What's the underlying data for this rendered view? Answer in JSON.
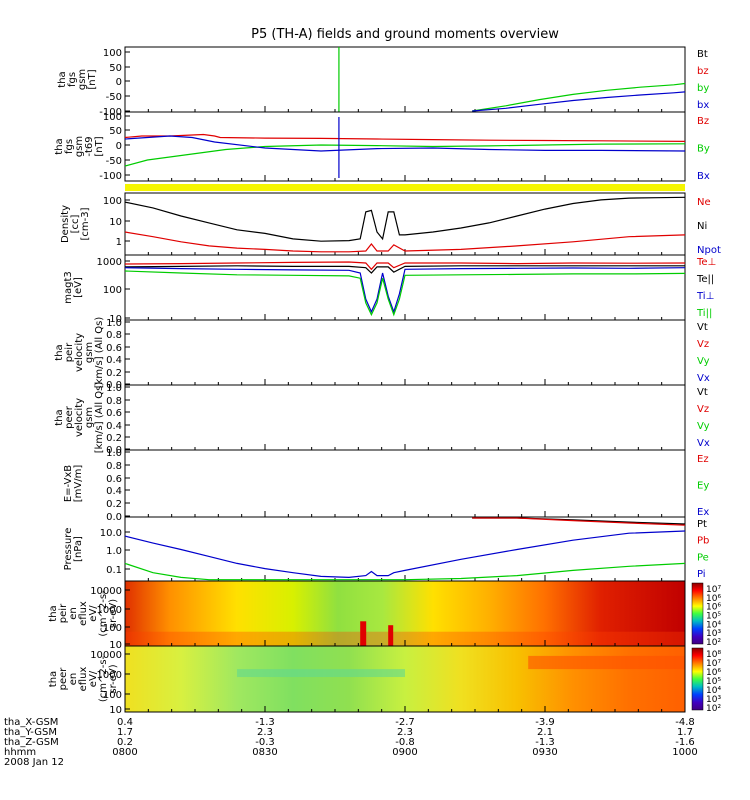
{
  "title": "P5 (TH-A) fields and ground moments overview",
  "colors": {
    "black": "#000000",
    "red": "#e00000",
    "green": "#00cc00",
    "blue": "#0000cc",
    "yellow": "#f5f500"
  },
  "chart_data": [
    {
      "type": "line",
      "ylabel": [
        "tha",
        "fgs",
        "gsm",
        "[nT]"
      ],
      "yticks": [
        "100",
        "50",
        "0",
        "-50",
        "-100"
      ],
      "ylim": [
        -100,
        110
      ],
      "legend": [
        "Bt",
        "bz",
        "by",
        "bx"
      ],
      "series": [
        {
          "name": "by",
          "color": "green",
          "x": [
            0.62,
            0.68,
            0.74,
            0.8,
            0.86,
            0.92,
            0.98,
            1.0
          ],
          "y": [
            -100,
            -80,
            -60,
            -43,
            -30,
            -20,
            -12,
            -8
          ]
        },
        {
          "name": "bx",
          "color": "blue",
          "x": [
            0.62,
            0.68,
            0.74,
            0.8,
            0.86,
            0.92,
            0.98,
            1.0
          ],
          "y": [
            -100,
            -88,
            -75,
            -63,
            -53,
            -45,
            -38,
            -35
          ]
        }
      ],
      "spike": {
        "color": "green",
        "x": 0.382
      }
    },
    {
      "type": "line",
      "ylabel": [
        "tha",
        "fgs",
        "gsm",
        "-t69",
        "[nT]"
      ],
      "yticks": [
        "100",
        "50",
        "0",
        "-50",
        "-100"
      ],
      "ylim": [
        -120,
        110
      ],
      "legend": [
        "Bz",
        "By",
        "Bx"
      ],
      "series": [
        {
          "name": "Bz",
          "color": "red",
          "x": [
            0,
            0.03,
            0.08,
            0.14,
            0.16,
            0.17,
            0.25,
            0.35,
            0.45,
            0.55,
            0.65,
            0.75,
            0.85,
            1.0
          ],
          "y": [
            25,
            30,
            30,
            35,
            30,
            25,
            23,
            22,
            20,
            18,
            16,
            15,
            14,
            12
          ]
        },
        {
          "name": "By",
          "color": "green",
          "x": [
            0,
            0.04,
            0.08,
            0.14,
            0.18,
            0.25,
            0.35,
            0.45,
            0.55,
            0.65,
            0.75,
            0.85,
            1.0
          ],
          "y": [
            -70,
            -50,
            -40,
            -25,
            -15,
            -5,
            0,
            -2,
            -5,
            -3,
            0,
            3,
            4
          ]
        },
        {
          "name": "Bx",
          "color": "blue",
          "x": [
            0,
            0.04,
            0.08,
            0.12,
            0.16,
            0.25,
            0.35,
            0.45,
            0.55,
            0.65,
            0.75,
            0.85,
            1.0
          ],
          "y": [
            20,
            25,
            30,
            25,
            10,
            -10,
            -20,
            -12,
            -10,
            -15,
            -18,
            -18,
            -20
          ]
        }
      ],
      "spike": {
        "color": "blue",
        "x": 0.382
      }
    },
    {
      "type": "line",
      "ylabel": [
        "Density",
        "[cc]",
        "[cm-3]"
      ],
      "yticks": [
        "100",
        "10",
        "1"
      ],
      "ylim": [
        0.4,
        200
      ],
      "scale": "log",
      "legend": [
        "Ne",
        "Ni",
        "Npot"
      ],
      "series": [
        {
          "name": "Ne",
          "color": "black",
          "x": [
            0,
            0.05,
            0.1,
            0.15,
            0.2,
            0.25,
            0.3,
            0.35,
            0.4,
            0.42,
            0.43,
            0.44,
            0.45,
            0.46,
            0.47,
            0.48,
            0.49,
            0.5,
            0.55,
            0.6,
            0.65,
            0.7,
            0.75,
            0.8,
            0.85,
            0.9,
            0.95,
            1.0
          ],
          "y": [
            80,
            45,
            20,
            10,
            5,
            3.5,
            2,
            1.6,
            1.7,
            2,
            30,
            35,
            4,
            2,
            30,
            30,
            3,
            3,
            4,
            6,
            10,
            20,
            40,
            70,
            100,
            120,
            125,
            130
          ]
        },
        {
          "name": "Ni",
          "color": "red",
          "x": [
            0,
            0.05,
            0.1,
            0.15,
            0.2,
            0.25,
            0.3,
            0.35,
            0.4,
            0.43,
            0.44,
            0.45,
            0.47,
            0.48,
            0.5,
            0.6,
            0.7,
            0.8,
            0.9,
            1.0
          ],
          "y": [
            4,
            2.5,
            1.5,
            1,
            0.8,
            0.7,
            0.6,
            0.55,
            0.55,
            0.6,
            1.2,
            0.6,
            0.6,
            1.1,
            0.6,
            0.7,
            1,
            1.5,
            2.5,
            3
          ]
        }
      ]
    },
    {
      "type": "line",
      "ylabel": [
        "magt3",
        "[eV]"
      ],
      "yticks": [
        "1000",
        "100",
        "10"
      ],
      "ylim": [
        8,
        1200
      ],
      "scale": "log",
      "legend": [
        "Te⊥",
        "Te||",
        "Ti⊥",
        "Ti||"
      ],
      "series": [
        {
          "name": "Te⊥",
          "color": "red",
          "x": [
            0,
            0.1,
            0.2,
            0.3,
            0.4,
            0.43,
            0.44,
            0.45,
            0.47,
            0.48,
            0.5,
            0.6,
            0.7,
            0.8,
            0.9,
            1.0
          ],
          "y": [
            600,
            620,
            650,
            680,
            700,
            650,
            400,
            650,
            650,
            450,
            650,
            650,
            620,
            650,
            640,
            650
          ]
        },
        {
          "name": "Te||",
          "color": "black",
          "x": [
            0,
            0.1,
            0.2,
            0.3,
            0.4,
            0.43,
            0.44,
            0.45,
            0.47,
            0.48,
            0.5,
            0.6,
            0.7,
            0.8,
            0.9,
            1.0
          ],
          "y": [
            480,
            500,
            520,
            500,
            500,
            450,
            300,
            480,
            480,
            320,
            500,
            520,
            520,
            520,
            520,
            520
          ]
        },
        {
          "name": "Ti⊥",
          "color": "blue",
          "x": [
            0,
            0.1,
            0.2,
            0.3,
            0.4,
            0.42,
            0.43,
            0.44,
            0.45,
            0.46,
            0.47,
            0.48,
            0.49,
            0.5,
            0.6,
            0.7,
            0.8,
            0.9,
            1.0
          ],
          "y": [
            450,
            420,
            400,
            380,
            370,
            300,
            40,
            15,
            40,
            300,
            50,
            15,
            60,
            400,
            420,
            430,
            440,
            430,
            450
          ]
        },
        {
          "name": "Ti||",
          "color": "green",
          "x": [
            0,
            0.1,
            0.2,
            0.3,
            0.4,
            0.42,
            0.43,
            0.44,
            0.45,
            0.46,
            0.47,
            0.48,
            0.49,
            0.5,
            0.6,
            0.7,
            0.8,
            0.9,
            1.0
          ],
          "y": [
            350,
            300,
            260,
            250,
            240,
            200,
            30,
            12,
            30,
            200,
            40,
            12,
            40,
            250,
            260,
            270,
            280,
            280,
            290
          ]
        }
      ]
    },
    {
      "type": "line",
      "ylabel": [
        "tha",
        "peir",
        "velocity",
        "gsm",
        "[km/s] (All Qs)"
      ],
      "yticks": [
        "1.0",
        "0.8",
        "0.6",
        "0.4",
        "0.2",
        "0.0"
      ],
      "ylim": [
        0,
        1
      ],
      "legend": [
        "Vt",
        "Vz",
        "Vy",
        "Vx"
      ],
      "series": []
    },
    {
      "type": "line",
      "ylabel": [
        "tha",
        "peer",
        "velocity",
        "gsm",
        "[km/s] (All Qs)"
      ],
      "yticks": [
        "1.0",
        "0.8",
        "0.6",
        "0.4",
        "0.2",
        "0.0"
      ],
      "ylim": [
        0,
        1
      ],
      "legend": [
        "Vt",
        "Vz",
        "Vy",
        "Vx"
      ],
      "series": []
    },
    {
      "type": "line",
      "ylabel": [
        "E=-VxB",
        "[mV/m]"
      ],
      "yticks": [
        "1.0",
        "0.8",
        "0.6",
        "0.4",
        "0.2",
        "0.0"
      ],
      "ylim": [
        0,
        1
      ],
      "legend": [
        "Ez",
        "Ey",
        "Ex"
      ],
      "series": []
    },
    {
      "type": "line",
      "ylabel": [
        "Pressure",
        "[nPa]"
      ],
      "yticks": [
        "10.0",
        "1.0",
        "0.1"
      ],
      "ylim": [
        0.035,
        20
      ],
      "scale": "log",
      "legend": [
        "Pt",
        "Pb",
        "Pe",
        "Pi"
      ],
      "series": [
        {
          "name": "Pt",
          "color": "black",
          "x": [
            0.62,
            0.7,
            0.8,
            0.9,
            1.0
          ],
          "y": [
            25,
            20,
            15,
            12,
            10
          ]
        },
        {
          "name": "Pb",
          "color": "red",
          "x": [
            0.62,
            0.7,
            0.8,
            0.9,
            1.0
          ],
          "y": [
            24,
            19,
            14,
            11,
            9
          ]
        },
        {
          "name": "Pi",
          "color": "blue",
          "x": [
            0,
            0.05,
            0.1,
            0.15,
            0.2,
            0.25,
            0.3,
            0.35,
            0.4,
            0.43,
            0.44,
            0.45,
            0.47,
            0.48,
            0.5,
            0.6,
            0.7,
            0.8,
            0.9,
            1.0
          ],
          "y": [
            3,
            1.5,
            0.8,
            0.4,
            0.2,
            0.12,
            0.08,
            0.055,
            0.05,
            0.06,
            0.09,
            0.06,
            0.06,
            0.08,
            0.1,
            0.3,
            0.8,
            2,
            4,
            5
          ]
        },
        {
          "name": "Pe",
          "color": "green",
          "x": [
            0,
            0.05,
            0.1,
            0.15,
            0.2,
            0.3,
            0.4,
            0.5,
            0.6,
            0.7,
            0.8,
            0.9,
            1.0
          ],
          "y": [
            0.2,
            0.08,
            0.05,
            0.04,
            0.04,
            0.04,
            0.04,
            0.04,
            0.045,
            0.06,
            0.1,
            0.15,
            0.2
          ]
        }
      ]
    },
    {
      "type": "heatmap",
      "ylabel": [
        "tha",
        "peir",
        "en",
        "eflux",
        "eV/",
        "(cm^2-s-",
        "sr-eV)"
      ],
      "yticks": [
        "10000",
        "1000",
        "100",
        "10"
      ],
      "colorbar": [
        "10⁷",
        "10⁶",
        "10⁶",
        "10⁵",
        "10⁴",
        "10³",
        "10²"
      ]
    },
    {
      "type": "heatmap",
      "ylabel": [
        "tha",
        "peer",
        "en",
        "eflux",
        "eV/",
        "(cm^2-s-",
        "sr-eV)"
      ],
      "yticks": [
        "10000",
        "1000",
        "100",
        "10"
      ],
      "colorbar": [
        "10⁸",
        "10⁷",
        "10⁶",
        "10⁵",
        "10⁴",
        "10³",
        "10²"
      ]
    }
  ],
  "xaxis": {
    "rows": [
      {
        "label": "tha_X-GSM",
        "values": [
          "0.4",
          "-1.3",
          "-2.7",
          "-3.9",
          "-4.8"
        ]
      },
      {
        "label": "tha_Y-GSM",
        "values": [
          "1.7",
          "2.3",
          "2.3",
          "2.1",
          "1.7"
        ]
      },
      {
        "label": "tha_Z-GSM",
        "values": [
          "0.2",
          "-0.3",
          "-0.8",
          "-1.3",
          "-1.6"
        ]
      },
      {
        "label": "hhmm",
        "values": [
          "0800",
          "0830",
          "0900",
          "0930",
          "1000"
        ]
      }
    ],
    "date": "2008 Jan 12"
  }
}
